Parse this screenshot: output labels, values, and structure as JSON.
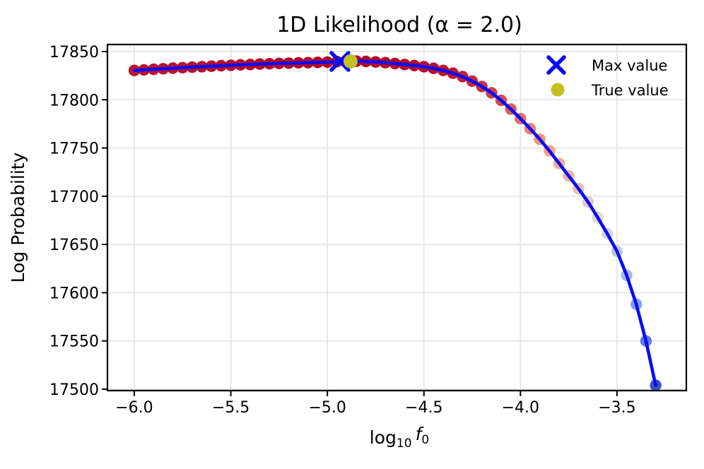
{
  "figure": {
    "background": "#ffffff"
  },
  "chart_data": {
    "type": "scatter",
    "title": "1D Likelihood (α = 2.0)",
    "ylabel": "Log Probability",
    "xlabel_parts": [
      {
        "t": "log"
      },
      {
        "t": "10",
        "sub": true
      },
      {
        "t": " "
      },
      {
        "t": "f",
        "italic": true
      },
      {
        "t": "0",
        "sub": true
      }
    ],
    "xlim": [
      -6.139,
      -3.141
    ],
    "ylim": [
      17498.5,
      17857.3
    ],
    "x_ticks": [
      -6.0,
      -5.5,
      -5.0,
      -4.5,
      -4.0,
      -3.5
    ],
    "x_tick_labels": [
      "−6.0",
      "−5.5",
      "−5.0",
      "−4.5",
      "−4.0",
      "−3.5"
    ],
    "y_ticks": [
      17500,
      17550,
      17600,
      17650,
      17700,
      17750,
      17800,
      17850
    ],
    "y_tick_labels": [
      "17500",
      "17550",
      "17600",
      "17650",
      "17700",
      "17750",
      "17800",
      "17850"
    ],
    "grid": true,
    "grid_color": "#e3e3e3",
    "line_color": "#0b0bf5",
    "colormap": [
      "#3b4cc0",
      "#7c9ff9",
      "#dddddd",
      "#f59c7d",
      "#b40426"
    ],
    "color_vmin": 17500,
    "color_vmax": 17840,
    "points": [
      [
        -6.0,
        17830.4
      ],
      [
        -5.95,
        17831.0
      ],
      [
        -5.9,
        17831.6
      ],
      [
        -5.85,
        17832.2
      ],
      [
        -5.8,
        17832.8
      ],
      [
        -5.75,
        17833.3
      ],
      [
        -5.7,
        17833.8
      ],
      [
        -5.65,
        17834.3
      ],
      [
        -5.6,
        17834.8
      ],
      [
        -5.55,
        17835.3
      ],
      [
        -5.5,
        17835.8
      ],
      [
        -5.45,
        17836.2
      ],
      [
        -5.4,
        17836.6
      ],
      [
        -5.35,
        17837.0
      ],
      [
        -5.3,
        17837.4
      ],
      [
        -5.25,
        17837.7
      ],
      [
        -5.2,
        17838.0
      ],
      [
        -5.15,
        17838.3
      ],
      [
        -5.1,
        17838.5
      ],
      [
        -5.05,
        17838.8
      ],
      [
        -5.0,
        17839.0
      ],
      [
        -4.95,
        17839.6
      ],
      [
        -4.9,
        17840.0
      ],
      [
        -4.85,
        17840.0
      ],
      [
        -4.8,
        17839.7
      ],
      [
        -4.75,
        17839.2
      ],
      [
        -4.7,
        17838.5
      ],
      [
        -4.65,
        17837.6
      ],
      [
        -4.6,
        17836.6
      ],
      [
        -4.55,
        17835.5
      ],
      [
        -4.5,
        17834.3
      ],
      [
        -4.45,
        17832.6
      ],
      [
        -4.4,
        17830.4
      ],
      [
        -4.35,
        17827.6
      ],
      [
        -4.3,
        17824.0
      ],
      [
        -4.25,
        17819.4
      ],
      [
        -4.2,
        17813.8
      ],
      [
        -4.15,
        17807.2
      ],
      [
        -4.1,
        17799.4
      ],
      [
        -4.05,
        17790.4
      ],
      [
        -4.0,
        17780.5
      ],
      [
        -3.95,
        17770.0
      ],
      [
        -3.9,
        17759.0
      ],
      [
        -3.85,
        17747.0
      ],
      [
        -3.8,
        17734.0
      ],
      [
        -3.75,
        17721.0
      ],
      [
        -3.7,
        17708.0
      ],
      [
        -3.65,
        17694.0
      ],
      [
        -3.6,
        17678.0
      ],
      [
        -3.55,
        17661.0
      ],
      [
        -3.5,
        17643.0
      ],
      [
        -3.45,
        17618.0
      ],
      [
        -3.4,
        17588.0
      ],
      [
        -3.35,
        17550.0
      ],
      [
        -3.3,
        17504.0
      ]
    ],
    "max_marker": {
      "x": -4.935,
      "y": 17839.8,
      "color": "#0b0bf5"
    },
    "true_marker": {
      "x": -4.88,
      "y": 17839.8,
      "color": "#c3c01f"
    },
    "legend": [
      {
        "label": "Max value",
        "marker": "x",
        "color": "#0b0bf5"
      },
      {
        "label": "True value",
        "marker": "circle",
        "color": "#c3c01f"
      }
    ]
  }
}
